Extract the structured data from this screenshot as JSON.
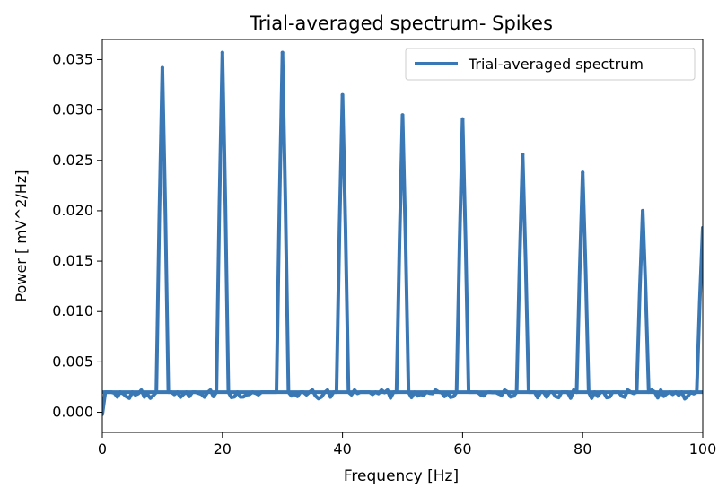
{
  "chart_data": {
    "type": "line",
    "title": "Trial-averaged spectrum- Spikes",
    "xlabel": "Frequency [Hz]",
    "ylabel": "Power [ mV^2/Hz]",
    "xlim": [
      0,
      100
    ],
    "ylim": [
      -0.002,
      0.037
    ],
    "xticks": [
      0,
      20,
      40,
      60,
      80,
      100
    ],
    "yticks": [
      0.0,
      0.005,
      0.01,
      0.015,
      0.02,
      0.025,
      0.03,
      0.035
    ],
    "ytick_labels": [
      "0.000",
      "0.005",
      "0.010",
      "0.015",
      "0.020",
      "0.025",
      "0.030",
      "0.035"
    ],
    "xtick_labels": [
      "0",
      "20",
      "40",
      "60",
      "80",
      "100"
    ],
    "grid": false,
    "legend_position": "top-right",
    "series": [
      {
        "name": "Trial-averaged spectrum",
        "color": "#3a78b5",
        "baseline_level": 0.002,
        "peaks": [
          {
            "x": 10,
            "y": 0.0342
          },
          {
            "x": 20,
            "y": 0.0357
          },
          {
            "x": 30,
            "y": 0.0357
          },
          {
            "x": 40,
            "y": 0.0315
          },
          {
            "x": 50,
            "y": 0.0295
          },
          {
            "x": 60,
            "y": 0.0291
          },
          {
            "x": 70,
            "y": 0.0256
          },
          {
            "x": 80,
            "y": 0.0238
          },
          {
            "x": 90,
            "y": 0.02
          },
          {
            "x": 100,
            "y": 0.0183
          }
        ]
      }
    ]
  }
}
